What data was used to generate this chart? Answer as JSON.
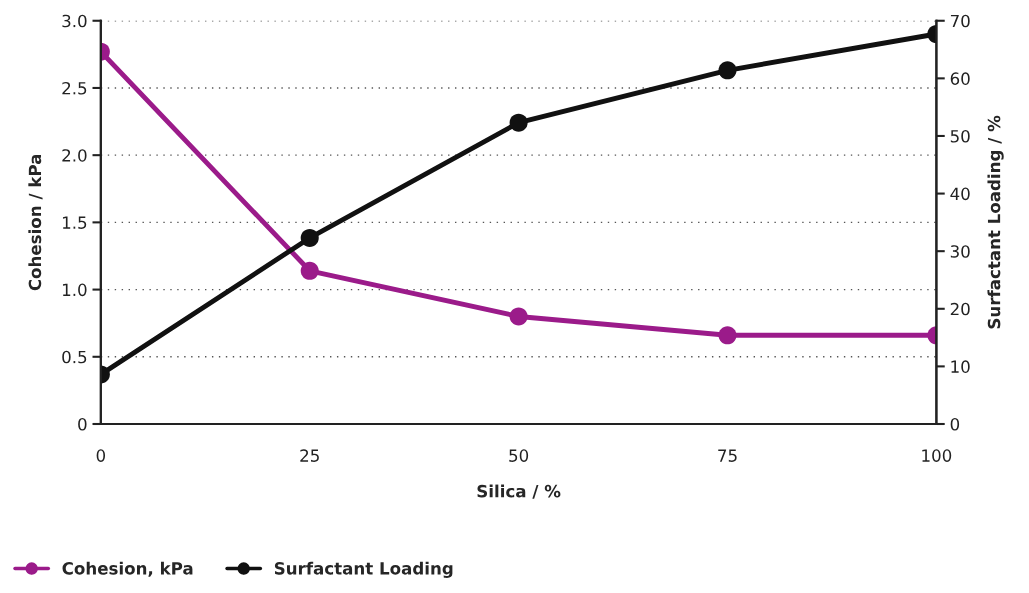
{
  "chart_data": {
    "type": "line",
    "xlabel": "Silica / %",
    "ylabel": "Cohesion / kPa",
    "y2label": "Surfactant Loading / %",
    "x": [
      0,
      25,
      50,
      75,
      100
    ],
    "series": [
      {
        "name": "Cohesion, kPa",
        "color": "#9b1b8a",
        "values": [
          2.77,
          1.14,
          0.8,
          0.66,
          0.66
        ]
      },
      {
        "name": "Surfactant Loading",
        "color": "#111111",
        "axis": "y2",
        "values": [
          8.6,
          32.3,
          52.3,
          61.4,
          67.7
        ]
      }
    ],
    "xlim": [
      0,
      100
    ],
    "xticks": [
      0,
      25,
      50,
      75,
      100
    ],
    "ylim": [
      0,
      3.0
    ],
    "yticks": [
      {
        "value": 0,
        "label": "0"
      },
      0.5,
      {
        "value": 1,
        "label": "1.0"
      },
      1.5,
      {
        "value": 2,
        "label": "2.0"
      },
      2.5,
      {
        "value": 3,
        "label": "3.0"
      }
    ],
    "y2lim": [
      0,
      70
    ],
    "y2ticks": [
      0,
      10,
      20,
      30,
      40,
      50,
      60,
      70
    ],
    "grid": "y",
    "legend": "bottom",
    "marker": "circle",
    "line_style": "solid"
  }
}
